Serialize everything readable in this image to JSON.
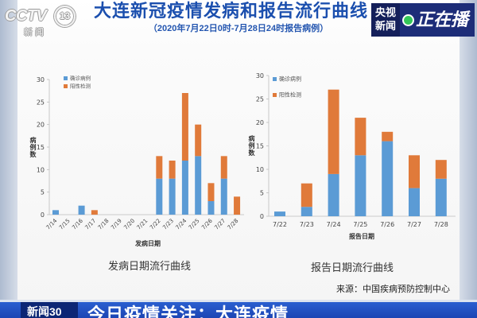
{
  "broadcast": {
    "channel_logo": {
      "brand": "CCTV",
      "number": "13",
      "name": "新闻"
    },
    "live_badge": {
      "line1": "央视",
      "line2": "新闻",
      "status": "正在播"
    }
  },
  "header": {
    "title": "大连新冠疫情发病和报告流行曲线",
    "subtitle": "（2020年7月22日0时-7月28日24时报告病例）"
  },
  "chart_data": [
    {
      "type": "bar",
      "stacked": true,
      "title": "发病日期流行曲线",
      "xlabel": "发病日期",
      "ylabel": "病例数",
      "ylim": [
        0,
        30
      ],
      "yticks": [
        0,
        5,
        10,
        15,
        20,
        25,
        30
      ],
      "grid": false,
      "legend": "top-left",
      "categories": [
        "7/14",
        "7/15",
        "7/16",
        "7/17",
        "7/18",
        "7/19",
        "7/20",
        "7/21",
        "7/22",
        "7/23",
        "7/24",
        "7/25",
        "7/26",
        "7/27",
        "7/28"
      ],
      "series": [
        {
          "name": "确诊病例",
          "color": "#5b9bd5",
          "values": [
            1,
            0,
            2,
            0,
            0,
            0,
            0,
            0,
            8,
            8,
            12,
            13,
            3,
            8,
            0
          ]
        },
        {
          "name": "阳性检测",
          "color": "#e07a3a",
          "values": [
            0,
            0,
            0,
            1,
            0,
            0,
            0,
            0,
            5,
            4,
            15,
            7,
            4,
            5,
            4
          ]
        }
      ]
    },
    {
      "type": "bar",
      "stacked": true,
      "title": "报告日期流行曲线",
      "xlabel": "报告日期",
      "ylabel": "病例数",
      "ylim": [
        0,
        30
      ],
      "yticks": [
        0,
        5,
        10,
        15,
        20,
        25,
        30
      ],
      "grid": false,
      "legend": "top-left",
      "categories": [
        "7/22",
        "7/23",
        "7/24",
        "7/25",
        "7/26",
        "7/27",
        "7/28"
      ],
      "series": [
        {
          "name": "确诊病例",
          "color": "#5b9bd5",
          "values": [
            1,
            2,
            9,
            13,
            16,
            6,
            8
          ]
        },
        {
          "name": "阳性检测",
          "color": "#e07a3a",
          "values": [
            0,
            5,
            18,
            8,
            2,
            7,
            4
          ]
        }
      ]
    }
  ],
  "footer": {
    "source": "来源：中国疾病预防控制中心"
  },
  "ticker": {
    "program": "新闻30",
    "headline": "今日疫情关注：大连疫情"
  }
}
